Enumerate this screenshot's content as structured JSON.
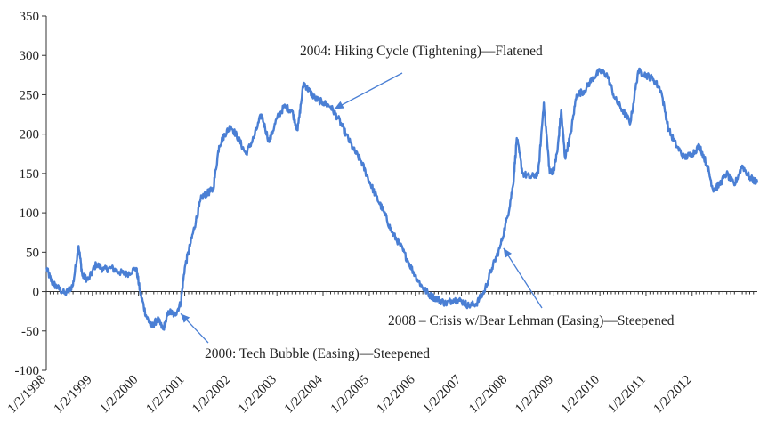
{
  "chart_data": {
    "type": "line",
    "title": "",
    "xlabel": "",
    "ylabel": "",
    "ylim": [
      -100,
      350
    ],
    "yticks": [
      -100,
      -50,
      0,
      50,
      100,
      150,
      200,
      250,
      300,
      350
    ],
    "xlim": [
      "1998-01-02",
      "2013-06-01"
    ],
    "xticks": [
      {
        "date": "1998-01-02",
        "label": "1/2/1998"
      },
      {
        "date": "1999-01-02",
        "label": "1/2/1999"
      },
      {
        "date": "2000-01-02",
        "label": "1/2/2000"
      },
      {
        "date": "2001-01-02",
        "label": "1/2/2001"
      },
      {
        "date": "2002-01-02",
        "label": "1/2/2002"
      },
      {
        "date": "2003-01-02",
        "label": "1/2/2003"
      },
      {
        "date": "2004-01-02",
        "label": "1/2/2004"
      },
      {
        "date": "2005-01-02",
        "label": "1/2/2005"
      },
      {
        "date": "2006-01-02",
        "label": "1/2/2006"
      },
      {
        "date": "2007-01-02",
        "label": "1/2/2007"
      },
      {
        "date": "2008-01-02",
        "label": "1/2/2008"
      },
      {
        "date": "2009-01-02",
        "label": "1/2/2009"
      },
      {
        "date": "2010-01-02",
        "label": "1/2/2010"
      },
      {
        "date": "2011-01-02",
        "label": "1/2/2011"
      },
      {
        "date": "2012-01-02",
        "label": "1/2/2012"
      }
    ],
    "grid": false,
    "legend": "none",
    "series": [
      {
        "color": "#4a7fd4",
        "points": [
          [
            "1998-01-02",
            30
          ],
          [
            "1998-02-15",
            12
          ],
          [
            "1998-04-01",
            5
          ],
          [
            "1998-06-01",
            -3
          ],
          [
            "1998-08-01",
            8
          ],
          [
            "1998-09-15",
            58
          ],
          [
            "1998-10-15",
            20
          ],
          [
            "1998-12-01",
            15
          ],
          [
            "1999-02-01",
            35
          ],
          [
            "1999-04-01",
            28
          ],
          [
            "1999-06-01",
            30
          ],
          [
            "1999-08-01",
            25
          ],
          [
            "1999-10-01",
            22
          ],
          [
            "1999-12-15",
            30
          ],
          [
            "2000-01-15",
            0
          ],
          [
            "2000-03-01",
            -30
          ],
          [
            "2000-04-15",
            -45
          ],
          [
            "2000-06-01",
            -35
          ],
          [
            "2000-07-15",
            -48
          ],
          [
            "2000-09-01",
            -25
          ],
          [
            "2000-10-15",
            -30
          ],
          [
            "2000-12-01",
            -15
          ],
          [
            "2001-01-02",
            30
          ],
          [
            "2001-02-15",
            60
          ],
          [
            "2001-04-01",
            90
          ],
          [
            "2001-05-15",
            120
          ],
          [
            "2001-07-01",
            125
          ],
          [
            "2001-08-15",
            130
          ],
          [
            "2001-10-01",
            185
          ],
          [
            "2001-11-15",
            200
          ],
          [
            "2002-01-02",
            210
          ],
          [
            "2002-03-01",
            195
          ],
          [
            "2002-05-01",
            175
          ],
          [
            "2002-07-01",
            195
          ],
          [
            "2002-09-01",
            225
          ],
          [
            "2002-11-01",
            190
          ],
          [
            "2003-01-02",
            220
          ],
          [
            "2003-03-01",
            235
          ],
          [
            "2003-05-01",
            230
          ],
          [
            "2003-06-15",
            205
          ],
          [
            "2003-08-01",
            265
          ],
          [
            "2003-09-15",
            255
          ],
          [
            "2003-11-01",
            245
          ],
          [
            "2004-01-02",
            240
          ],
          [
            "2004-03-01",
            235
          ],
          [
            "2004-05-01",
            220
          ],
          [
            "2004-07-01",
            200
          ],
          [
            "2004-09-01",
            180
          ],
          [
            "2004-11-01",
            165
          ],
          [
            "2005-01-02",
            140
          ],
          [
            "2005-03-01",
            120
          ],
          [
            "2005-05-01",
            100
          ],
          [
            "2005-07-01",
            75
          ],
          [
            "2005-09-01",
            60
          ],
          [
            "2005-11-01",
            40
          ],
          [
            "2006-01-02",
            20
          ],
          [
            "2006-03-01",
            5
          ],
          [
            "2006-05-01",
            -5
          ],
          [
            "2006-07-01",
            -10
          ],
          [
            "2006-09-01",
            -15
          ],
          [
            "2006-11-01",
            -10
          ],
          [
            "2007-01-02",
            -12
          ],
          [
            "2007-03-01",
            -18
          ],
          [
            "2007-05-01",
            -15
          ],
          [
            "2007-07-01",
            0
          ],
          [
            "2007-09-01",
            30
          ],
          [
            "2007-11-01",
            55
          ],
          [
            "2008-01-02",
            95
          ],
          [
            "2008-02-15",
            135
          ],
          [
            "2008-03-15",
            195
          ],
          [
            "2008-05-01",
            150
          ],
          [
            "2008-07-01",
            145
          ],
          [
            "2008-09-01",
            150
          ],
          [
            "2008-10-15",
            240
          ],
          [
            "2008-12-01",
            150
          ],
          [
            "2009-01-02",
            155
          ],
          [
            "2009-02-01",
            180
          ],
          [
            "2009-03-01",
            230
          ],
          [
            "2009-04-01",
            170
          ],
          [
            "2009-05-15",
            200
          ],
          [
            "2009-07-01",
            250
          ],
          [
            "2009-09-01",
            255
          ],
          [
            "2009-11-01",
            270
          ],
          [
            "2010-01-02",
            280
          ],
          [
            "2010-03-01",
            275
          ],
          [
            "2010-05-01",
            245
          ],
          [
            "2010-07-01",
            230
          ],
          [
            "2010-09-01",
            215
          ],
          [
            "2010-11-01",
            280
          ],
          [
            "2011-01-02",
            275
          ],
          [
            "2011-03-01",
            270
          ],
          [
            "2011-05-01",
            255
          ],
          [
            "2011-07-01",
            205
          ],
          [
            "2011-09-01",
            185
          ],
          [
            "2011-11-01",
            170
          ],
          [
            "2012-01-02",
            175
          ],
          [
            "2012-03-01",
            185
          ],
          [
            "2012-05-01",
            160
          ],
          [
            "2012-06-15",
            130
          ],
          [
            "2012-08-01",
            135
          ],
          [
            "2012-10-01",
            150
          ],
          [
            "2012-12-01",
            135
          ],
          [
            "2013-02-01",
            160
          ],
          [
            "2013-04-01",
            145
          ],
          [
            "2013-06-01",
            138
          ]
        ]
      }
    ],
    "annotations": [
      {
        "id": "hiking",
        "text": "2004: Hiking Cycle (Tightening)—Flatened",
        "target": [
          "2004-04-01",
          232
        ]
      },
      {
        "id": "tech",
        "text": "2000: Tech Bubble (Easing)—Steepened",
        "target": [
          "2000-12-01",
          -28
        ]
      },
      {
        "id": "crisis",
        "text": "2008 – Crisis w/Bear Lehman (Easing)—Steepened",
        "target": [
          "2007-12-01",
          55
        ]
      }
    ]
  }
}
